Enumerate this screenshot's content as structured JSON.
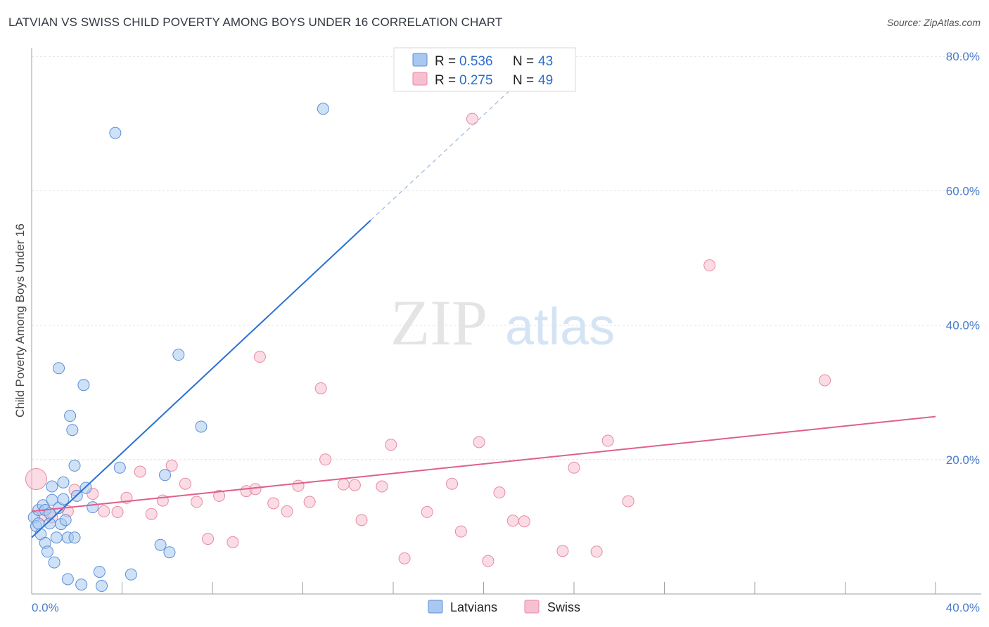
{
  "title": "LATVIAN VS SWISS CHILD POVERTY AMONG BOYS UNDER 16 CORRELATION CHART",
  "source": "Source: ZipAtlas.com",
  "watermark": {
    "zip": "ZIP",
    "atlas": "atlas"
  },
  "colors": {
    "latvian_fill": "#a8c8f0",
    "latvian_stroke": "#5b8fd6",
    "latvian_line": "#2a6fd6",
    "swiss_fill": "#f7c0d0",
    "swiss_stroke": "#e58aa5",
    "swiss_line": "#e0608a",
    "tick": "#4a7cc9",
    "grid": "#dde1e6"
  },
  "legend_top": [
    {
      "r_label": "R = ",
      "r_value": "0.536",
      "n_label": "N = ",
      "n_value": "43"
    },
    {
      "r_label": "R = ",
      "r_value": "0.275",
      "n_label": "N = ",
      "n_value": "49"
    }
  ],
  "chart_data": {
    "type": "scatter",
    "title": "LATVIAN VS SWISS CHILD POVERTY AMONG BOYS UNDER 16 CORRELATION CHART",
    "xlabel": "",
    "ylabel": "Child Poverty Among Boys Under 16",
    "xlim": [
      0,
      40
    ],
    "ylim": [
      0,
      80
    ],
    "x_tick_labels": [
      "0.0%",
      "40.0%"
    ],
    "y_ticks": [
      20,
      40,
      60,
      80
    ],
    "y_tick_labels": [
      "20.0%",
      "40.0%",
      "60.0%",
      "80.0%"
    ],
    "grid": true,
    "legend_position": "bottom",
    "series": [
      {
        "name": "Latvians",
        "r": 0.536,
        "n": 43,
        "trend": {
          "x0": 0,
          "y0": 8.4,
          "x1": 15,
          "y1": 55.6,
          "dash_to_x": 23,
          "dash_to_y": 80.7
        },
        "points": [
          [
            0.1,
            11.4
          ],
          [
            0.2,
            10.1
          ],
          [
            0.3,
            12.5
          ],
          [
            0.4,
            8.9
          ],
          [
            0.5,
            13.2
          ],
          [
            0.6,
            12.5
          ],
          [
            0.6,
            7.6
          ],
          [
            0.7,
            6.3
          ],
          [
            0.8,
            10.5
          ],
          [
            0.9,
            16.0
          ],
          [
            0.9,
            14.0
          ],
          [
            1.0,
            4.7
          ],
          [
            1.1,
            8.4
          ],
          [
            1.2,
            33.6
          ],
          [
            1.2,
            12.8
          ],
          [
            1.3,
            10.4
          ],
          [
            1.4,
            14.1
          ],
          [
            1.4,
            16.6
          ],
          [
            1.5,
            11.0
          ],
          [
            1.6,
            8.4
          ],
          [
            1.6,
            2.2
          ],
          [
            1.7,
            26.5
          ],
          [
            1.8,
            24.4
          ],
          [
            1.9,
            19.1
          ],
          [
            1.9,
            8.4
          ],
          [
            2.0,
            14.6
          ],
          [
            2.2,
            1.4
          ],
          [
            2.3,
            31.1
          ],
          [
            2.4,
            15.8
          ],
          [
            2.7,
            12.9
          ],
          [
            3.0,
            3.3
          ],
          [
            3.1,
            1.2
          ],
          [
            3.7,
            68.6
          ],
          [
            3.9,
            18.8
          ],
          [
            4.4,
            2.9
          ],
          [
            5.7,
            7.3
          ],
          [
            5.9,
            17.7
          ],
          [
            6.1,
            6.2
          ],
          [
            6.5,
            35.6
          ],
          [
            7.5,
            24.9
          ],
          [
            12.9,
            72.2
          ],
          [
            0.3,
            10.5
          ],
          [
            0.8,
            12.0
          ]
        ]
      },
      {
        "name": "Swiss",
        "r": 0.275,
        "n": 49,
        "trend": {
          "x0": 0,
          "y0": 12.3,
          "x1": 40,
          "y1": 26.4
        },
        "points": [
          [
            0.2,
            17.1
          ],
          [
            0.5,
            11.7
          ],
          [
            1.6,
            12.3
          ],
          [
            2.7,
            14.9
          ],
          [
            3.2,
            12.3
          ],
          [
            3.8,
            12.2
          ],
          [
            4.2,
            14.3
          ],
          [
            4.8,
            18.2
          ],
          [
            5.3,
            11.9
          ],
          [
            5.8,
            13.9
          ],
          [
            6.2,
            19.1
          ],
          [
            6.8,
            16.4
          ],
          [
            7.3,
            13.7
          ],
          [
            7.8,
            8.2
          ],
          [
            8.3,
            14.6
          ],
          [
            8.9,
            7.7
          ],
          [
            9.5,
            15.3
          ],
          [
            9.9,
            15.6
          ],
          [
            10.1,
            35.3
          ],
          [
            10.7,
            13.5
          ],
          [
            11.3,
            12.3
          ],
          [
            11.8,
            16.1
          ],
          [
            12.3,
            13.7
          ],
          [
            12.8,
            30.6
          ],
          [
            13.0,
            20.0
          ],
          [
            13.8,
            16.3
          ],
          [
            14.3,
            16.2
          ],
          [
            14.6,
            11.0
          ],
          [
            15.5,
            16.0
          ],
          [
            15.9,
            22.2
          ],
          [
            16.5,
            5.3
          ],
          [
            17.5,
            12.2
          ],
          [
            18.6,
            16.4
          ],
          [
            19.0,
            9.3
          ],
          [
            19.5,
            70.7
          ],
          [
            19.8,
            22.6
          ],
          [
            20.2,
            4.9
          ],
          [
            20.7,
            15.1
          ],
          [
            21.3,
            10.9
          ],
          [
            21.8,
            10.8
          ],
          [
            23.5,
            6.4
          ],
          [
            24.0,
            18.8
          ],
          [
            25.0,
            6.3
          ],
          [
            25.5,
            22.8
          ],
          [
            26.4,
            13.8
          ],
          [
            30.0,
            48.9
          ],
          [
            35.1,
            31.8
          ],
          [
            1.9,
            15.5
          ],
          [
            0.9,
            11.4
          ]
        ]
      }
    ]
  },
  "legend_bottom": [
    {
      "label": "Latvians"
    },
    {
      "label": "Swiss"
    }
  ]
}
